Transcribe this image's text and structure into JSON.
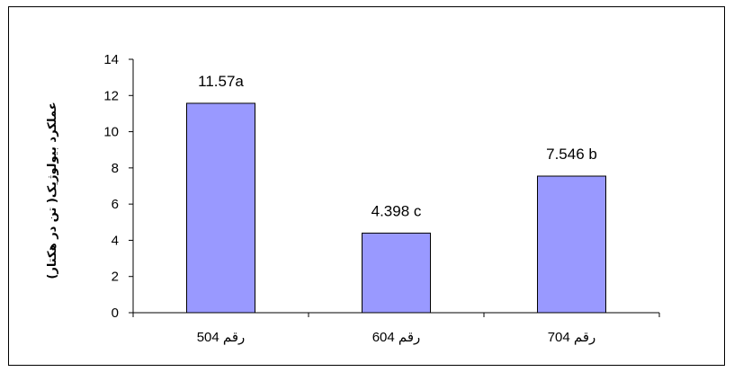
{
  "chart_data": {
    "type": "bar",
    "title": "",
    "xlabel": "",
    "ylabel": "عملکرد بیولوژیک( تن در هکتار)",
    "categories": [
      "رقم 504",
      "رقم 604",
      "رقم 704"
    ],
    "values": [
      11.57,
      4.398,
      7.546
    ],
    "data_labels": [
      "11.57a",
      "4.398 c",
      "7.546 b"
    ],
    "ylim": [
      0,
      14
    ],
    "yticks": [
      0,
      2,
      4,
      6,
      8,
      10,
      12,
      14
    ],
    "grid": false,
    "legend": "none",
    "bar_color": "#9999FF",
    "bar_border_color": "#000000"
  }
}
